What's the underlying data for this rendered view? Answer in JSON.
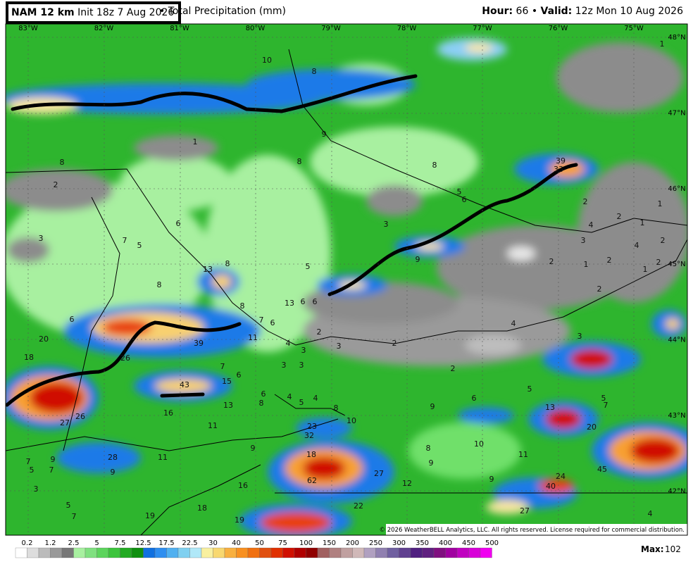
{
  "header": {
    "model": "NAM 12 km",
    "init": "Init 18z 7 Aug 2026",
    "separator": "•",
    "field": "Total Precipitation (mm)",
    "hour_label": "Hour:",
    "hour": "66",
    "valid_label": "Valid:",
    "valid": "12z Mon 10 Aug 2026"
  },
  "map": {
    "longitude_labels": [
      "83°W",
      "82°W",
      "81°W",
      "80°W",
      "79°W",
      "78°W",
      "77°W",
      "76°W",
      "75°W"
    ],
    "latitude_labels": [
      "48°N",
      "47°N",
      "46°N",
      "45°N",
      "44°N",
      "43°N",
      "42°N"
    ],
    "point_labels": [
      10,
      8,
      1,
      9,
      1,
      8,
      8,
      8,
      39,
      33,
      2,
      5,
      6,
      2,
      1,
      6,
      3,
      2,
      1,
      4,
      3,
      7,
      5,
      3,
      4,
      2,
      8,
      13,
      5,
      9,
      2,
      1,
      2,
      1,
      2,
      8,
      8,
      13,
      6,
      6,
      2,
      7,
      6,
      6,
      4,
      2,
      20,
      39,
      11,
      4,
      3,
      2,
      3,
      3,
      18,
      26,
      7,
      3,
      3,
      6,
      2,
      15,
      43,
      6,
      8,
      4,
      5,
      4,
      5,
      6,
      5,
      7,
      13,
      16,
      13,
      9,
      27,
      26,
      8,
      11,
      10,
      23,
      20,
      32,
      9,
      8,
      10,
      7,
      9,
      28,
      11,
      18,
      11,
      9,
      5,
      7,
      9,
      27,
      45,
      24,
      62,
      12,
      9,
      16,
      40,
      3,
      5,
      22,
      18,
      27,
      4,
      7,
      19,
      19
    ],
    "copyright": "© 2026 WeatherBELL Analytics, LLC. All rights reserved. License required for commercial distribution."
  },
  "legend": {
    "labels": [
      0.2,
      1.2,
      2.5,
      5,
      7.5,
      12.5,
      17.5,
      22.5,
      30,
      40,
      50,
      75,
      100,
      150,
      200,
      250,
      300,
      350,
      400,
      450,
      500
    ],
    "max_label": "Max:",
    "max": 102
  }
}
